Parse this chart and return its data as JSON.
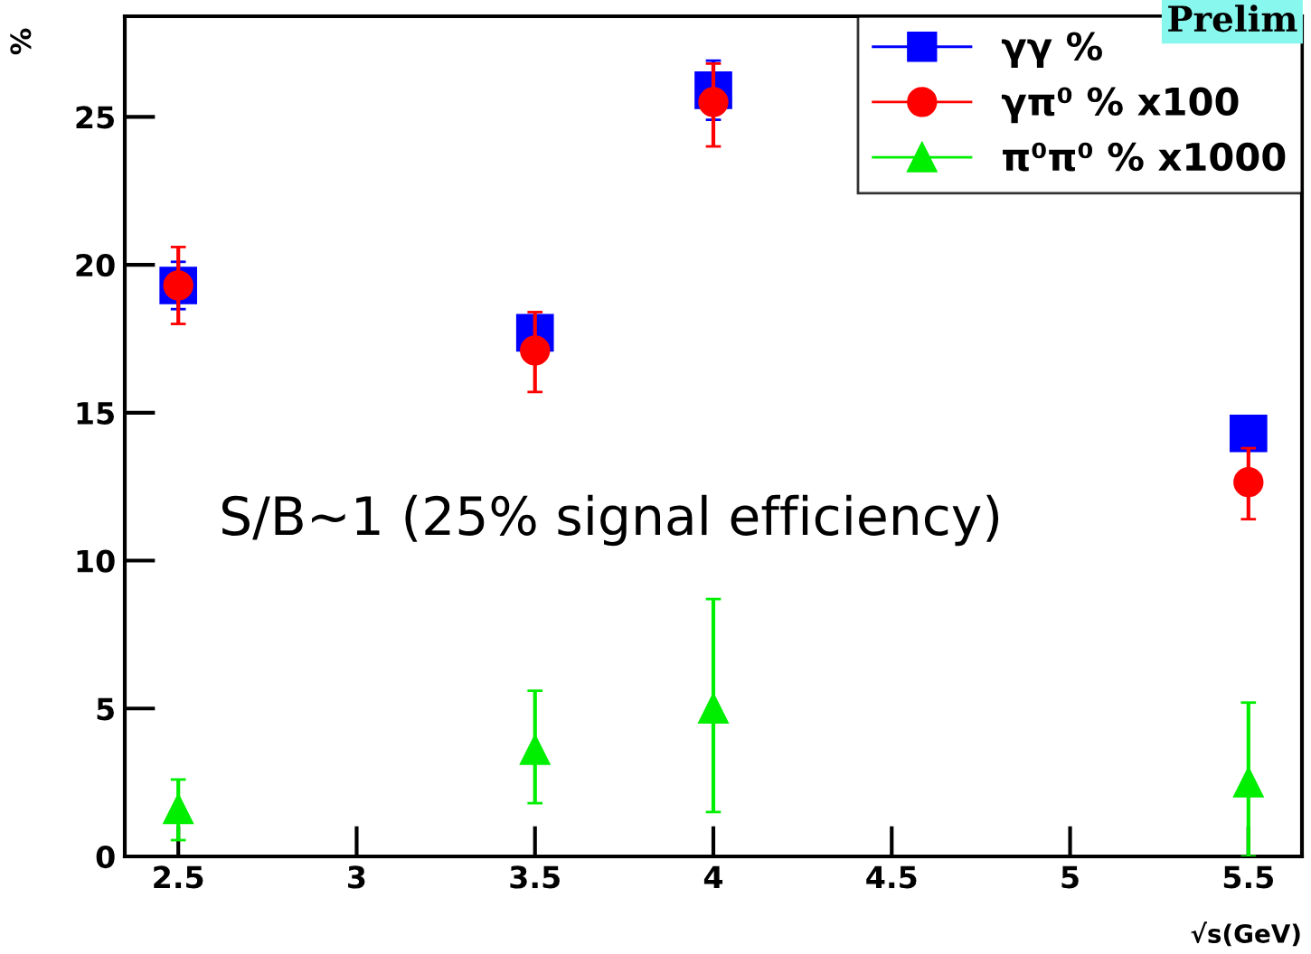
{
  "chart_data": {
    "type": "scatter",
    "xlabel": "√s(GeV)",
    "ylabel": "%",
    "xlim": [
      2.35,
      5.65
    ],
    "xticks": [
      2.5,
      3,
      3.5,
      4,
      4.5,
      5,
      5.5
    ],
    "ylim": [
      0,
      28.4
    ],
    "yticks": [
      0,
      5,
      10,
      15,
      20,
      25
    ],
    "grid": false,
    "legend": "top right",
    "annotations": [
      "S/B~1 (25% signal efficiency)",
      "Prelim"
    ],
    "series": [
      {
        "name": "γγ %",
        "color": "#0000ff",
        "marker": "square",
        "x": [
          2.5,
          3.5,
          4,
          5.5
        ],
        "values": [
          19.3,
          17.7,
          25.9,
          14.3
        ],
        "errors": [
          0.8,
          0.5,
          1.0,
          null
        ]
      },
      {
        "name": "γπ⁰ % x100",
        "color": "#ff0000",
        "marker": "circle",
        "x": [
          2.5,
          3.5,
          4,
          5.5
        ],
        "values": [
          19.3,
          17.1,
          25.5,
          12.65
        ],
        "errors": [
          [
            18.0,
            20.6
          ],
          [
            15.7,
            18.4
          ],
          [
            24.0,
            26.8
          ],
          [
            11.4,
            13.8
          ]
        ]
      },
      {
        "name": "π⁰π⁰ % x1000",
        "color": "#00ee00",
        "marker": "triangle",
        "x": [
          2.5,
          3.5,
          4,
          5.5
        ],
        "values": [
          1.6,
          3.6,
          5.0,
          2.5
        ],
        "errors": [
          [
            0.55,
            2.6
          ],
          [
            1.8,
            5.6
          ],
          [
            1.5,
            8.7
          ],
          [
            0,
            5.2
          ]
        ]
      }
    ]
  }
}
